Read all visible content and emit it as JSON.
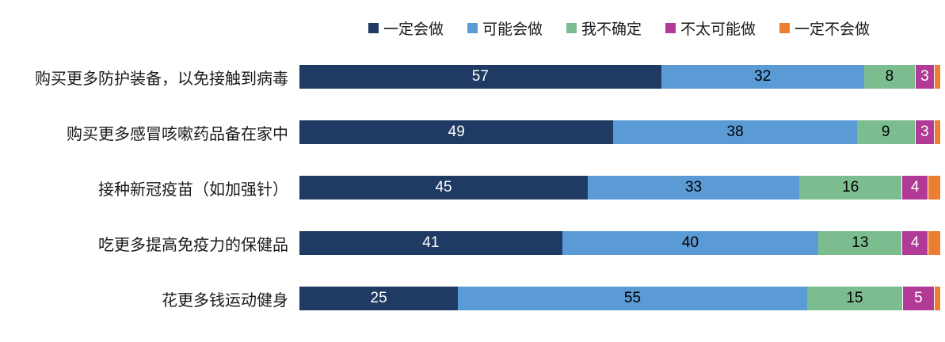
{
  "page": {
    "background": "#ffffff"
  },
  "chart_data": {
    "type": "bar",
    "orientation": "horizontal",
    "stacked": true,
    "percent_scale": true,
    "xlim": [
      0,
      100
    ],
    "grid": false,
    "legend_position": "top",
    "value_label_min": 3,
    "categories": [
      "购买更多防护装备，以免接触到病毒",
      "购买更多感冒咳嗽药品备在家中",
      "接种新冠疫苗（如加强针）",
      "吃更多提高免疫力的保健品",
      "花更多钱运动健身"
    ],
    "series": [
      {
        "name": "一定会做",
        "color": "#1F3A63",
        "text_color": "#ffffff",
        "values": [
          57,
          49,
          45,
          41,
          25
        ]
      },
      {
        "name": "可能会做",
        "color": "#5B9BD5",
        "text_color": "#000000",
        "values": [
          32,
          38,
          33,
          40,
          55
        ]
      },
      {
        "name": "我不确定",
        "color": "#7CBD90",
        "text_color": "#000000",
        "values": [
          8,
          9,
          16,
          13,
          15
        ]
      },
      {
        "name": "不太可能做",
        "color": "#B23A97",
        "text_color": "#ffffff",
        "values": [
          3,
          3,
          4,
          4,
          5
        ]
      },
      {
        "name": "一定不会做",
        "color": "#ED7D31",
        "text_color": "#ffffff",
        "values": [
          1,
          1,
          2,
          2,
          1
        ]
      }
    ]
  }
}
